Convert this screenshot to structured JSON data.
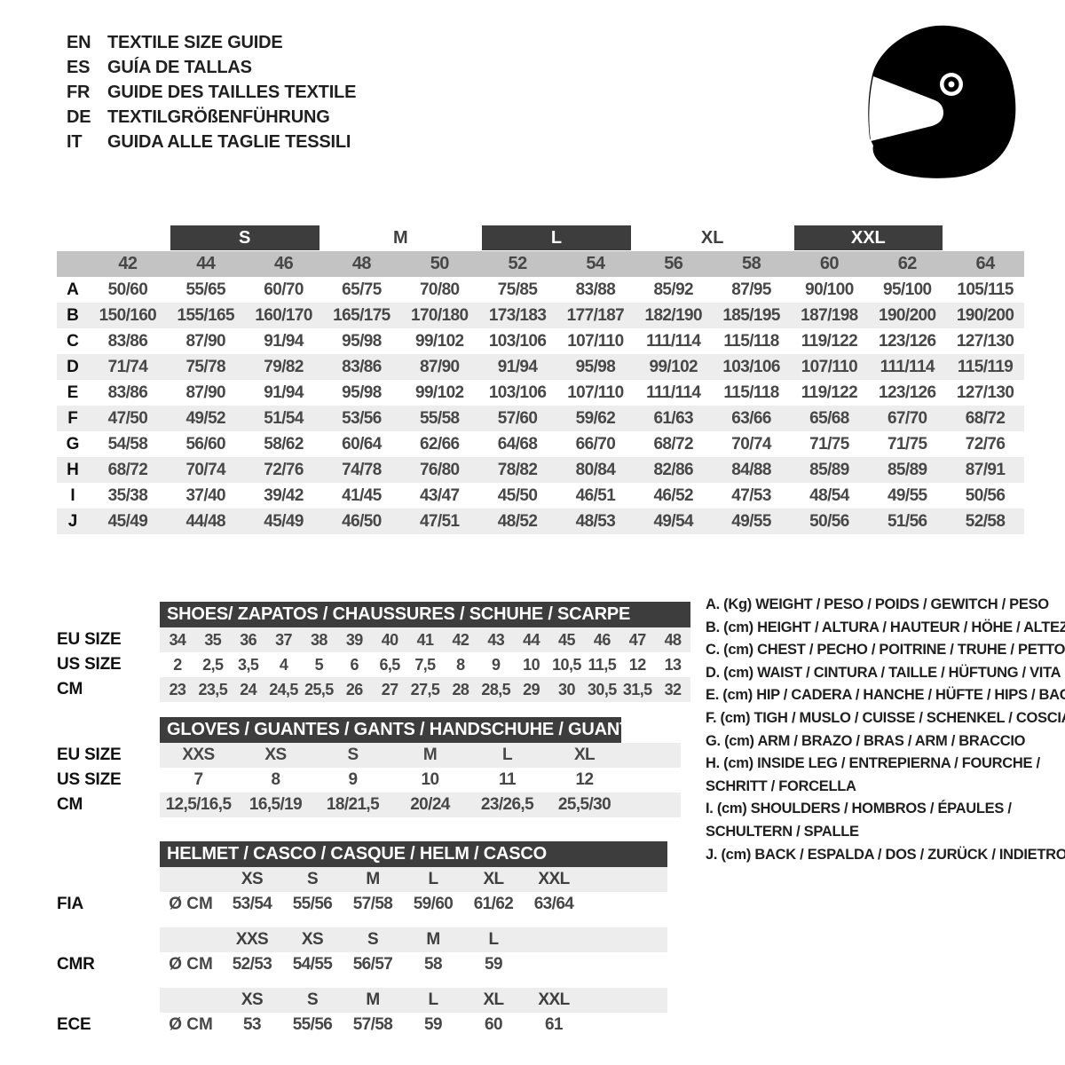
{
  "header": {
    "languages": [
      {
        "code": "EN",
        "title": "TEXTILE SIZE GUIDE"
      },
      {
        "code": "ES",
        "title": "GUÍA DE TALLAS"
      },
      {
        "code": "FR",
        "title": "GUIDE DES TAILLES TEXTILE"
      },
      {
        "code": "DE",
        "title": "TEXTILGRÖßENFÜHRUNG"
      },
      {
        "code": "IT",
        "title": "GUIDA ALLE TAGLIE TESSILI"
      }
    ]
  },
  "main_table": {
    "size_groups": [
      {
        "label": "S",
        "boxed": true
      },
      {
        "label": "M",
        "boxed": false
      },
      {
        "label": "L",
        "boxed": true
      },
      {
        "label": "XL",
        "boxed": false
      },
      {
        "label": "XXL",
        "boxed": true
      }
    ],
    "columns": [
      "42",
      "44",
      "46",
      "48",
      "50",
      "52",
      "54",
      "56",
      "58",
      "60",
      "62",
      "64"
    ],
    "rows": [
      {
        "label": "A",
        "values": [
          "50/60",
          "55/65",
          "60/70",
          "65/75",
          "70/80",
          "75/85",
          "83/88",
          "85/92",
          "87/95",
          "90/100",
          "95/100",
          "105/115"
        ]
      },
      {
        "label": "B",
        "values": [
          "150/160",
          "155/165",
          "160/170",
          "165/175",
          "170/180",
          "173/183",
          "177/187",
          "182/190",
          "185/195",
          "187/198",
          "190/200",
          "190/200"
        ]
      },
      {
        "label": "C",
        "values": [
          "83/86",
          "87/90",
          "91/94",
          "95/98",
          "99/102",
          "103/106",
          "107/110",
          "111/114",
          "115/118",
          "119/122",
          "123/126",
          "127/130"
        ]
      },
      {
        "label": "D",
        "values": [
          "71/74",
          "75/78",
          "79/82",
          "83/86",
          "87/90",
          "91/94",
          "95/98",
          "99/102",
          "103/106",
          "107/110",
          "111/114",
          "115/119"
        ]
      },
      {
        "label": "E",
        "values": [
          "83/86",
          "87/90",
          "91/94",
          "95/98",
          "99/102",
          "103/106",
          "107/110",
          "111/114",
          "115/118",
          "119/122",
          "123/126",
          "127/130"
        ]
      },
      {
        "label": "F",
        "values": [
          "47/50",
          "49/52",
          "51/54",
          "53/56",
          "55/58",
          "57/60",
          "59/62",
          "61/63",
          "63/66",
          "65/68",
          "67/70",
          "68/72"
        ]
      },
      {
        "label": "G",
        "values": [
          "54/58",
          "56/60",
          "58/62",
          "60/64",
          "62/66",
          "64/68",
          "66/70",
          "68/72",
          "70/74",
          "71/75",
          "71/75",
          "72/76"
        ]
      },
      {
        "label": "H",
        "values": [
          "68/72",
          "70/74",
          "72/76",
          "74/78",
          "76/80",
          "78/82",
          "80/84",
          "82/86",
          "84/88",
          "85/89",
          "85/89",
          "87/91"
        ]
      },
      {
        "label": "I",
        "values": [
          "35/38",
          "37/40",
          "39/42",
          "41/45",
          "43/47",
          "45/50",
          "46/51",
          "46/52",
          "47/53",
          "48/54",
          "49/55",
          "50/56"
        ]
      },
      {
        "label": "J",
        "values": [
          "45/49",
          "44/48",
          "45/49",
          "46/50",
          "47/51",
          "48/52",
          "48/53",
          "49/54",
          "49/55",
          "50/56",
          "51/56",
          "52/58"
        ]
      }
    ]
  },
  "shoes": {
    "title": "SHOES/ ZAPATOS / CHAUSSURES / SCHUHE / SCARPE",
    "rows": [
      {
        "label": "EU SIZE",
        "values": [
          "34",
          "35",
          "36",
          "37",
          "38",
          "39",
          "40",
          "41",
          "42",
          "43",
          "44",
          "45",
          "46",
          "47",
          "48"
        ]
      },
      {
        "label": "US SIZE",
        "values": [
          "2",
          "2,5",
          "3,5",
          "4",
          "5",
          "6",
          "6,5",
          "7,5",
          "8",
          "9",
          "10",
          "10,5",
          "11,5",
          "12",
          "13"
        ]
      },
      {
        "label": "CM",
        "values": [
          "23",
          "23,5",
          "24",
          "24,5",
          "25,5",
          "26",
          "27",
          "27,5",
          "28",
          "28,5",
          "29",
          "30",
          "30,5",
          "31,5",
          "32"
        ]
      }
    ]
  },
  "gloves": {
    "title": "GLOVES / GUANTES / GANTS / HANDSCHUHE / GUANTI",
    "rows": [
      {
        "label": "EU SIZE",
        "values": [
          "XXS",
          "XS",
          "S",
          "M",
          "L",
          "XL"
        ]
      },
      {
        "label": "US SIZE",
        "values": [
          "7",
          "8",
          "9",
          "10",
          "11",
          "12"
        ]
      },
      {
        "label": "CM",
        "values": [
          "12,5/16,5",
          "16,5/19",
          "18/21,5",
          "20/24",
          "23/26,5",
          "25,5/30"
        ]
      }
    ]
  },
  "helmet": {
    "title": "HELMET / CASCO / CASQUE / HELM / CASCO",
    "standards": [
      {
        "label": "FIA",
        "unit": "Ø CM",
        "sizes": [
          "XS",
          "S",
          "M",
          "L",
          "XL",
          "XXL"
        ],
        "values": [
          "53/54",
          "55/56",
          "57/58",
          "59/60",
          "61/62",
          "63/64"
        ]
      },
      {
        "label": "CMR",
        "unit": "Ø CM",
        "sizes": [
          "XXS",
          "XS",
          "S",
          "M",
          "L"
        ],
        "values": [
          "52/53",
          "54/55",
          "56/57",
          "58",
          "59"
        ]
      },
      {
        "label": "ECE",
        "unit": "Ø CM",
        "sizes": [
          "XS",
          "S",
          "M",
          "L",
          "XL",
          "XXL"
        ],
        "values": [
          "53",
          "55/56",
          "57/58",
          "59",
          "60",
          "61"
        ]
      }
    ]
  },
  "legend": {
    "items": [
      {
        "key": "A. (Kg)",
        "lines": [
          "WEIGHT / PESO / POIDS / GEWITCH / PESO"
        ]
      },
      {
        "key": "B. (cm)",
        "lines": [
          "HEIGHT / ALTURA / HAUTEUR / HÖHE / ALTEZZA"
        ]
      },
      {
        "key": "C. (cm)",
        "lines": [
          "CHEST / PECHO / POITRINE / TRUHE / PETTO"
        ]
      },
      {
        "key": "D. (cm)",
        "lines": [
          "WAIST / CINTURA / TAILLE / HÜFTUNG / VITA"
        ]
      },
      {
        "key": "E. (cm)",
        "lines": [
          "HIP / CADERA / HANCHE / HÜFTE / HIPS / BACINO"
        ]
      },
      {
        "key": "F. (cm)",
        "lines": [
          "TIGH / MUSLO / CUISSE / SCHENKEL / COSCIA"
        ]
      },
      {
        "key": "G. (cm)",
        "lines": [
          "ARM / BRAZO / BRAS / ARM / BRACCIO"
        ]
      },
      {
        "key": "H. (cm)",
        "lines": [
          "INSIDE LEG / ENTREPIERNA / FOURCHE /",
          "SCHRITT / FORCELLA"
        ]
      },
      {
        "key": "I. (cm)",
        "lines": [
          "SHOULDERS / HOMBROS / ÉPAULES /",
          "SCHULTERN / SPALLE"
        ]
      },
      {
        "key": "J. (cm)",
        "lines": [
          "BACK / ESPALDA / DOS / ZURÜCK / INDIETRO"
        ]
      }
    ]
  },
  "colors": {
    "dark_bar": "#3d3d3d",
    "column_band": "#c3c3c3",
    "row_stripe": "#ededed",
    "label_text": "#111111",
    "value_text": "#474747"
  }
}
